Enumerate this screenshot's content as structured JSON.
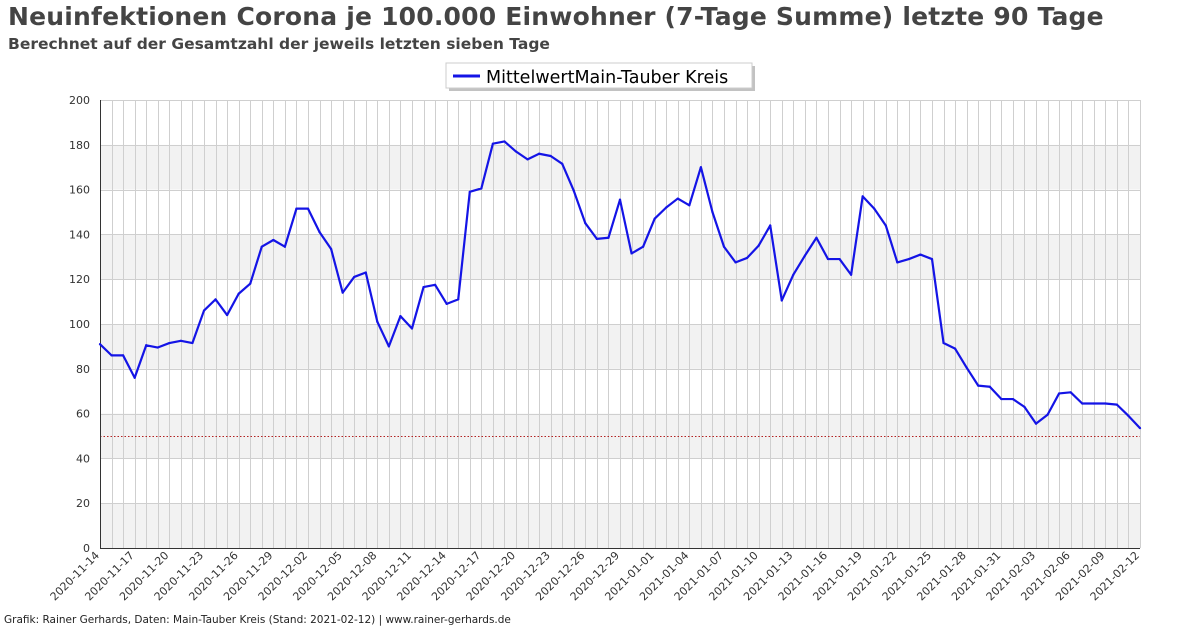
{
  "header": {
    "title": "Neuinfektionen Corona je 100.000 Einwohner (7-Tage Summe) letzte 90 Tage",
    "subtitle": "Berechnet auf der Gesamtzahl der jeweils letzten sieben Tage"
  },
  "footer": {
    "text": "Grafik: Rainer Gerhards, Daten: Main-Tauber Kreis (Stand: 2021-02-12) | www.rainer-gerhards.de"
  },
  "colors": {
    "series": "#1414e6",
    "reference_line": "#b22222",
    "band": "#f2f2f2",
    "grid": "#cfcfcf"
  },
  "chart_data": {
    "type": "line",
    "ylim": [
      0,
      200
    ],
    "yticks": [
      0,
      20,
      40,
      60,
      80,
      100,
      120,
      140,
      160,
      180,
      200
    ],
    "xlabel": "",
    "ylabel": "",
    "grid": true,
    "legend_position": "top-center",
    "reference_line": {
      "y": 50,
      "style": "dotted"
    },
    "x_tick_labels": [
      "2020-11-14",
      "2020-11-17",
      "2020-11-20",
      "2020-11-23",
      "2020-11-26",
      "2020-11-29",
      "2020-12-02",
      "2020-12-05",
      "2020-12-08",
      "2020-12-11",
      "2020-12-14",
      "2020-12-17",
      "2020-12-20",
      "2020-12-23",
      "2020-12-26",
      "2020-12-29",
      "2021-01-01",
      "2021-01-04",
      "2021-01-07",
      "2021-01-10",
      "2021-01-13",
      "2021-01-16",
      "2021-01-19",
      "2021-01-22",
      "2021-01-25",
      "2021-01-28",
      "2021-01-31",
      "2021-02-03",
      "2021-02-06",
      "2021-02-09",
      "2021-02-12"
    ],
    "x_start": "2020-11-14",
    "x_end": "2021-02-12",
    "series": [
      {
        "name": "MittelwertMain-Tauber Kreis",
        "values": [
          91,
          86,
          86,
          76,
          90.5,
          89.5,
          91.5,
          92.5,
          91.5,
          106,
          111,
          104,
          113.5,
          118,
          134.5,
          137.5,
          134.5,
          151.5,
          151.5,
          141,
          133.5,
          114,
          121,
          123,
          101,
          90,
          103.5,
          98,
          116.5,
          117.5,
          109,
          111,
          159,
          160.5,
          180.5,
          181.5,
          177,
          173.5,
          176,
          175,
          171.5,
          159.5,
          145,
          138,
          138.5,
          155.5,
          131.5,
          134.5,
          147,
          152,
          156,
          153,
          170,
          150,
          134.5,
          127.5,
          129.5,
          135,
          144,
          110.5,
          122,
          130.5,
          138.5,
          129,
          129,
          122,
          157,
          151.5,
          144,
          127.5,
          129,
          131,
          129,
          91.5,
          89,
          80.5,
          72.5,
          72,
          66.5,
          66.5,
          63,
          55.5,
          59.5,
          69,
          69.5,
          64.5,
          64.5,
          64.5,
          64,
          59,
          53.5
        ]
      }
    ]
  }
}
